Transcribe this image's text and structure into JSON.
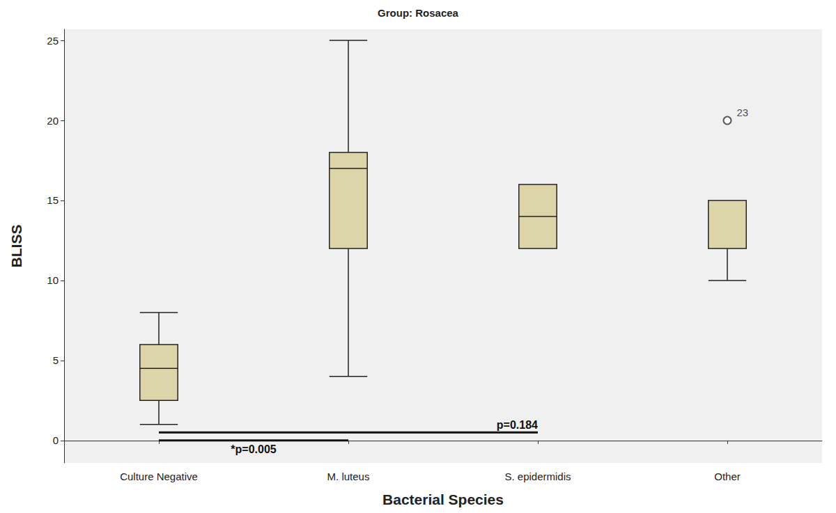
{
  "chart_data": {
    "type": "boxplot",
    "title": "Group: Rosacea",
    "x_label": "Bacterial Species",
    "y_label": "BLISS",
    "categories": [
      "Culture Negative",
      "M. luteus",
      "S. epidermidis",
      "Other"
    ],
    "boxes": [
      {
        "min": 1,
        "q1": 2.5,
        "median": 4.5,
        "q3": 6,
        "max": 8
      },
      {
        "min": 4,
        "q1": 12,
        "median": 17,
        "q3": 18,
        "max": 25
      },
      {
        "min": 12,
        "q1": 12,
        "median": 14,
        "q3": 16,
        "max": 16
      },
      {
        "min": 10,
        "q1": 12,
        "median": 12,
        "q3": 15,
        "max": 15
      }
    ],
    "outliers": [
      {
        "category": "Other",
        "value": 20,
        "label": "23"
      }
    ],
    "annotations": [
      {
        "text": "p=0.184",
        "from": "Culture Negative",
        "to": "S. epidermidis",
        "y": 0.5
      },
      {
        "text": "*p=0.005",
        "from": "Culture Negative",
        "to": "M. luteus",
        "y": 0
      }
    ],
    "color": "#dcd5aa",
    "ylim": [
      -1.4,
      25.7
    ],
    "yticks": [
      0,
      5,
      10,
      15,
      20,
      25
    ],
    "grid": false
  }
}
